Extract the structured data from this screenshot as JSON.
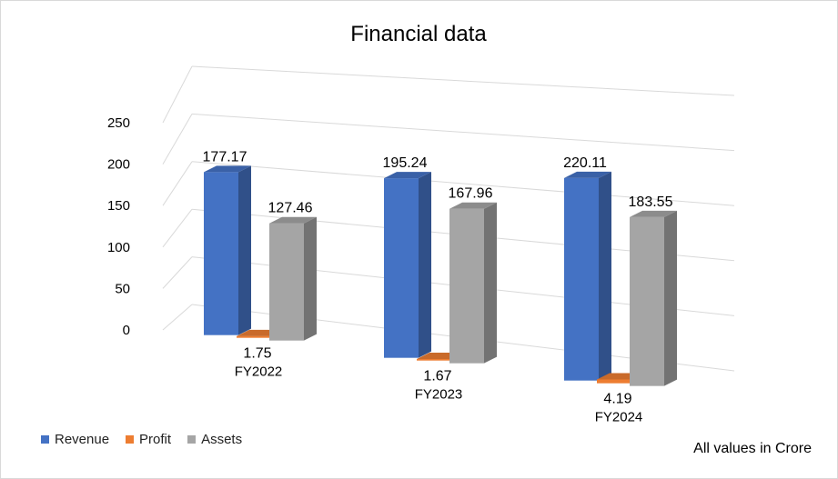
{
  "chart_data": {
    "type": "bar",
    "title": "Financial data",
    "categories": [
      "FY2022",
      "FY2023",
      "FY2024"
    ],
    "series": [
      {
        "name": "Revenue",
        "values": [
          177.17,
          195.24,
          220.11
        ],
        "color": "#4472C4"
      },
      {
        "name": "Profit",
        "values": [
          1.75,
          1.67,
          4.19
        ],
        "color": "#ED7D31"
      },
      {
        "name": "Assets",
        "values": [
          127.46,
          167.96,
          183.55
        ],
        "color": "#A5A5A5"
      }
    ],
    "y_ticks": [
      "0",
      "50",
      "100",
      "150",
      "200",
      "250"
    ],
    "ylim": [
      0,
      250
    ],
    "grid": true,
    "legend_position": "bottom-left",
    "style": "3d-column",
    "note": "All values in Crore"
  }
}
